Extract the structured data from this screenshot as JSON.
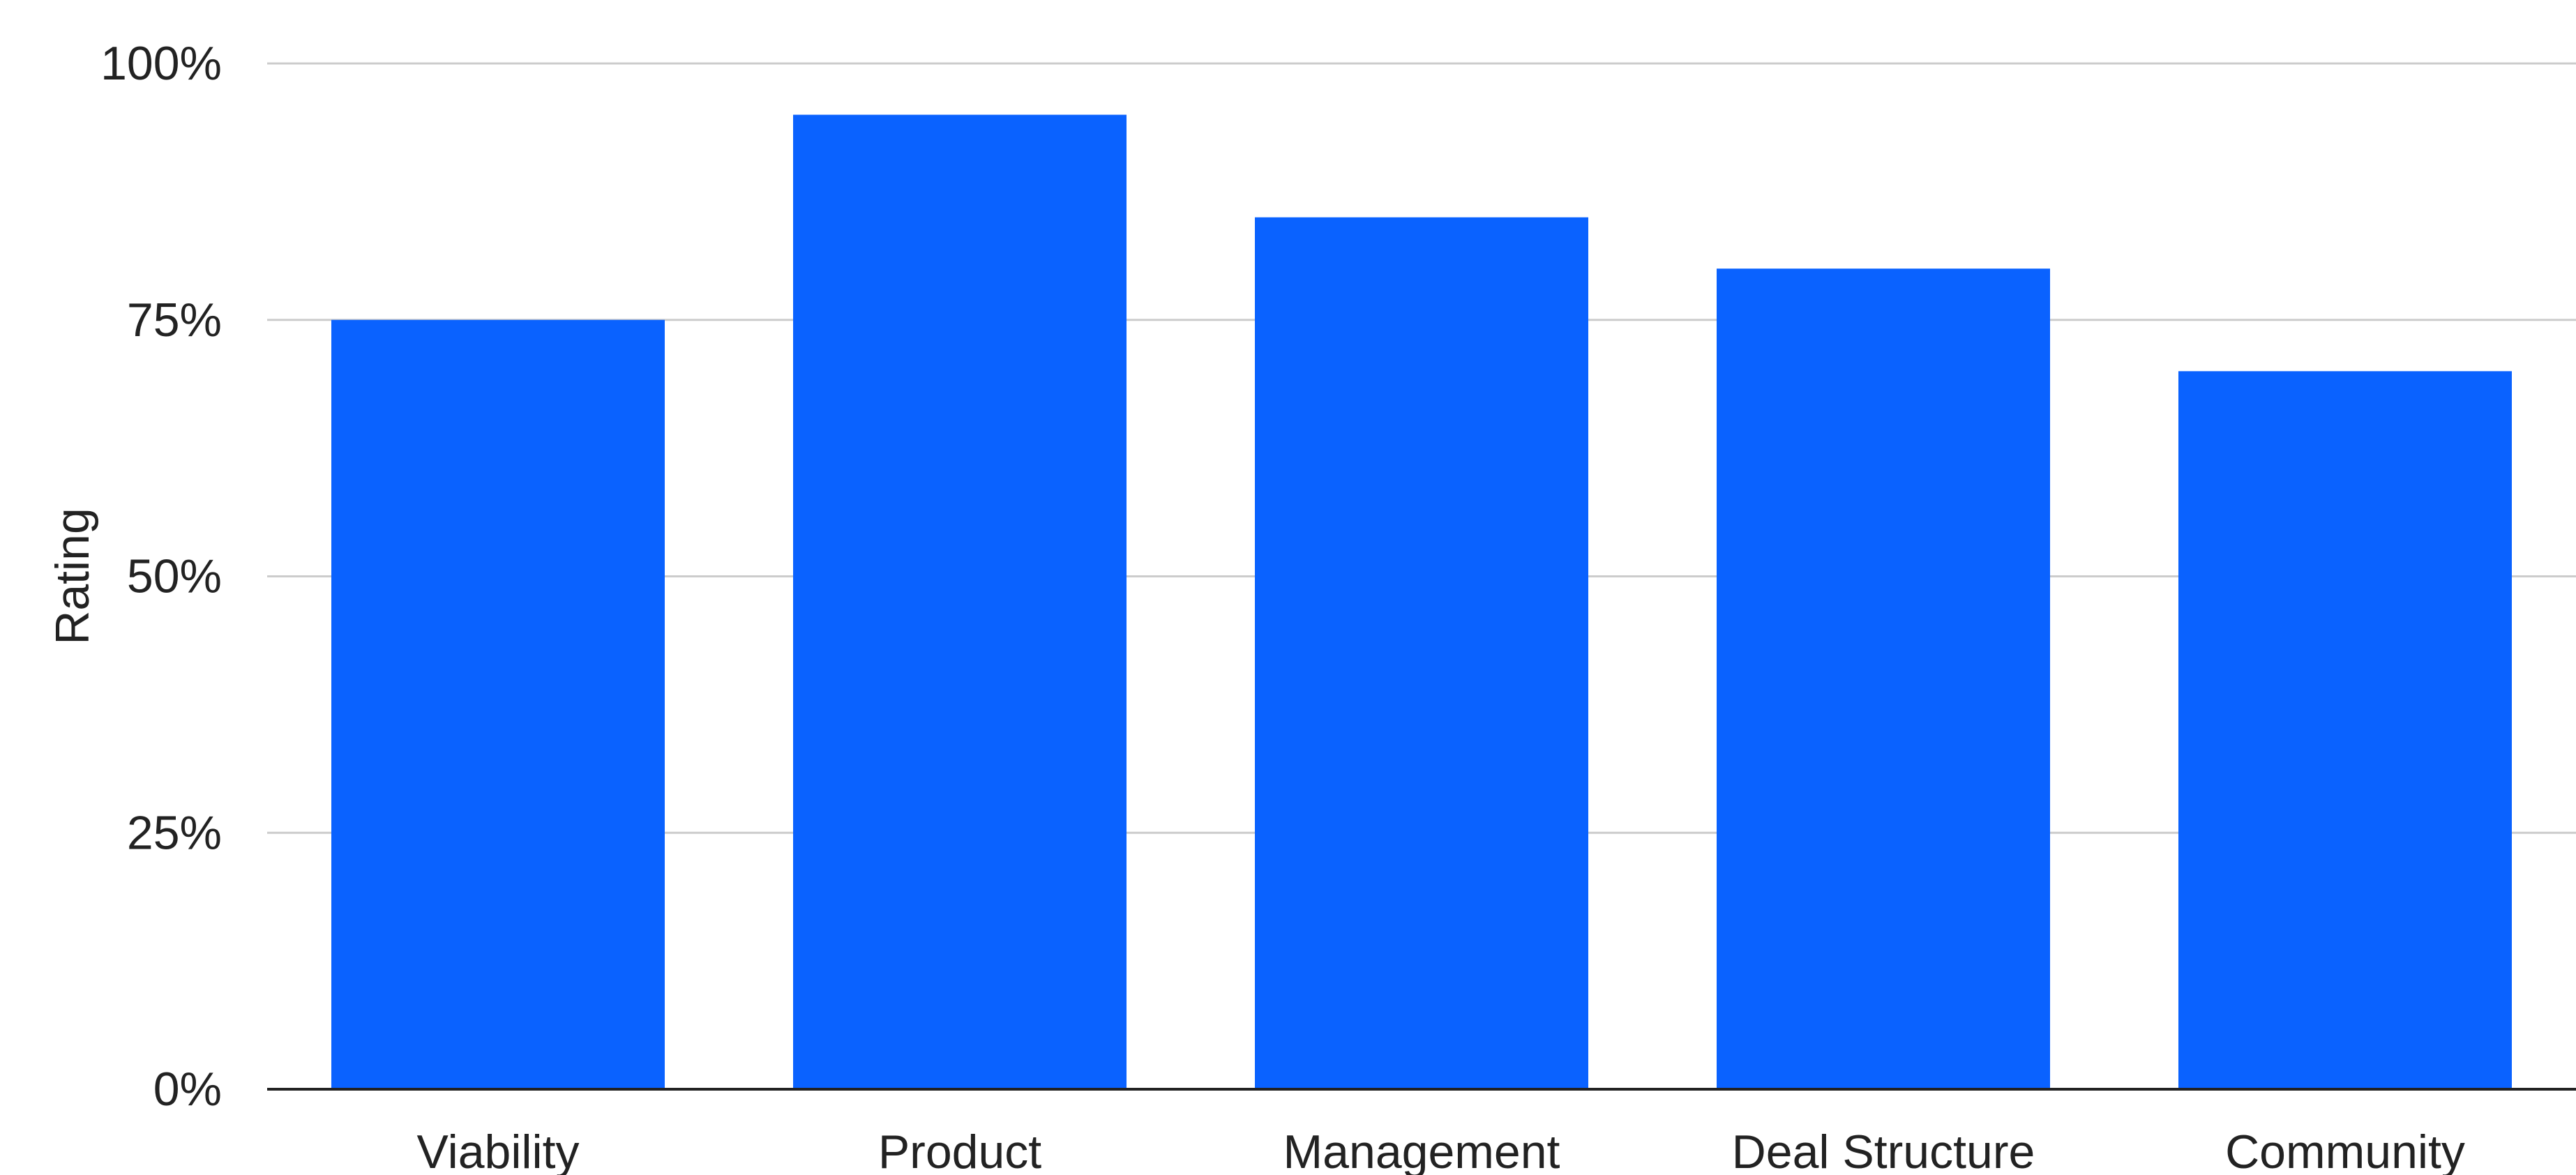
{
  "chart_data": {
    "type": "bar",
    "categories": [
      "Viability",
      "Product",
      "Management",
      "Deal Structure",
      "Community"
    ],
    "values": [
      75,
      95,
      85,
      80,
      70
    ],
    "ylabel": "Rating",
    "ylim": [
      0,
      100
    ],
    "yticks": [
      0,
      25,
      50,
      75,
      100
    ],
    "ytick_labels": [
      "0%",
      "25%",
      "50%",
      "75%",
      "100%"
    ],
    "grid": true,
    "legend": "none",
    "bar_color": "#0A62FF",
    "gridline_color": "#CCCCCC",
    "baseline_color": "#222222"
  }
}
